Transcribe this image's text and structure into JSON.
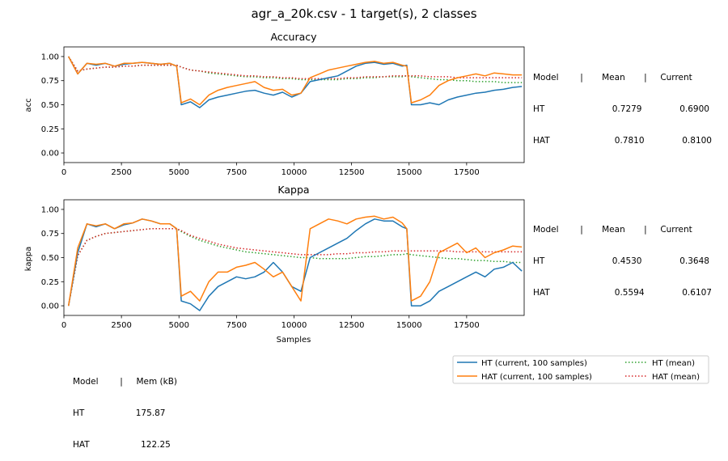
{
  "figure": {
    "title": "agr_a_20k.csv - 1 target(s), 2 classes"
  },
  "colors": {
    "ht_current": "#1f77b4",
    "hat_current": "#ff7f0e",
    "ht_mean": "#2ca02c",
    "hat_mean": "#d62728"
  },
  "chart_data": [
    {
      "type": "line",
      "title": "Accuracy",
      "xlabel": "",
      "ylabel": "acc",
      "xlim": [
        0,
        20000
      ],
      "ylim": [
        -0.1,
        1.1
      ],
      "xticks": [
        0,
        2500,
        5000,
        7500,
        10000,
        12500,
        15000,
        17500
      ],
      "yticks": [
        0.0,
        0.25,
        0.5,
        0.75,
        1.0
      ],
      "ytick_labels": [
        "0.00",
        "0.25",
        "0.50",
        "0.75",
        "1.00"
      ],
      "legend_position": "right (table)",
      "x": [
        200,
        600,
        1000,
        1400,
        1800,
        2200,
        2600,
        3000,
        3400,
        3800,
        4200,
        4600,
        4900,
        5100,
        5500,
        5900,
        6300,
        6700,
        7100,
        7500,
        7900,
        8300,
        8700,
        9100,
        9500,
        9900,
        10300,
        10700,
        11100,
        11500,
        11900,
        12300,
        12700,
        13100,
        13500,
        13900,
        14300,
        14700,
        14900,
        15100,
        15500,
        15900,
        16300,
        16700,
        17100,
        17500,
        17900,
        18300,
        18700,
        19100,
        19500,
        19900
      ],
      "series": [
        {
          "name": "HT",
          "style": "current",
          "values": [
            1.0,
            0.82,
            0.93,
            0.91,
            0.93,
            0.9,
            0.92,
            0.93,
            0.94,
            0.93,
            0.92,
            0.93,
            0.9,
            0.5,
            0.53,
            0.47,
            0.55,
            0.58,
            0.6,
            0.62,
            0.64,
            0.65,
            0.62,
            0.6,
            0.63,
            0.58,
            0.62,
            0.74,
            0.76,
            0.78,
            0.8,
            0.85,
            0.9,
            0.93,
            0.94,
            0.92,
            0.93,
            0.9,
            0.91,
            0.5,
            0.5,
            0.52,
            0.5,
            0.55,
            0.58,
            0.6,
            0.62,
            0.63,
            0.65,
            0.66,
            0.68,
            0.69
          ]
        },
        {
          "name": "HAT",
          "style": "current",
          "values": [
            1.0,
            0.82,
            0.93,
            0.92,
            0.93,
            0.9,
            0.93,
            0.93,
            0.94,
            0.93,
            0.92,
            0.93,
            0.9,
            0.52,
            0.56,
            0.5,
            0.6,
            0.65,
            0.68,
            0.7,
            0.72,
            0.74,
            0.68,
            0.65,
            0.66,
            0.6,
            0.62,
            0.78,
            0.82,
            0.86,
            0.88,
            0.9,
            0.92,
            0.94,
            0.95,
            0.93,
            0.94,
            0.91,
            0.9,
            0.52,
            0.55,
            0.6,
            0.7,
            0.75,
            0.78,
            0.8,
            0.82,
            0.8,
            0.83,
            0.82,
            0.81,
            0.81
          ]
        },
        {
          "name": "HT (mean)",
          "style": "mean",
          "values": [
            1.0,
            0.85,
            0.87,
            0.88,
            0.89,
            0.89,
            0.9,
            0.9,
            0.91,
            0.91,
            0.91,
            0.91,
            0.91,
            0.89,
            0.86,
            0.85,
            0.83,
            0.82,
            0.81,
            0.8,
            0.79,
            0.79,
            0.78,
            0.78,
            0.77,
            0.77,
            0.76,
            0.76,
            0.76,
            0.76,
            0.76,
            0.77,
            0.77,
            0.78,
            0.78,
            0.79,
            0.79,
            0.79,
            0.8,
            0.79,
            0.78,
            0.77,
            0.76,
            0.76,
            0.75,
            0.75,
            0.74,
            0.74,
            0.74,
            0.73,
            0.73,
            0.73
          ]
        },
        {
          "name": "HAT (mean)",
          "style": "mean",
          "values": [
            1.0,
            0.85,
            0.87,
            0.88,
            0.89,
            0.89,
            0.9,
            0.9,
            0.91,
            0.91,
            0.91,
            0.91,
            0.91,
            0.89,
            0.86,
            0.85,
            0.84,
            0.83,
            0.82,
            0.81,
            0.8,
            0.8,
            0.79,
            0.79,
            0.78,
            0.78,
            0.77,
            0.77,
            0.77,
            0.77,
            0.77,
            0.78,
            0.78,
            0.79,
            0.79,
            0.79,
            0.8,
            0.8,
            0.8,
            0.8,
            0.8,
            0.79,
            0.79,
            0.79,
            0.78,
            0.78,
            0.78,
            0.78,
            0.78,
            0.78,
            0.78,
            0.78
          ]
        }
      ],
      "stats": {
        "header": "Model        |       Mean       |     Current",
        "rows": [
          "HT                         0.7279              0.6900",
          "HAT                        0.7810              0.8100"
        ]
      }
    },
    {
      "type": "line",
      "title": "Kappa",
      "xlabel": "Samples",
      "ylabel": "kappa",
      "xlim": [
        0,
        20000
      ],
      "ylim": [
        -0.1,
        1.1
      ],
      "xticks": [
        0,
        2500,
        5000,
        7500,
        10000,
        12500,
        15000,
        17500
      ],
      "yticks": [
        0.0,
        0.25,
        0.5,
        0.75,
        1.0
      ],
      "ytick_labels": [
        "0.00",
        "0.25",
        "0.50",
        "0.75",
        "1.00"
      ],
      "legend_position": "right (table)",
      "x": [
        200,
        600,
        1000,
        1400,
        1800,
        2200,
        2600,
        3000,
        3400,
        3800,
        4200,
        4600,
        4900,
        5100,
        5500,
        5900,
        6300,
        6700,
        7100,
        7500,
        7900,
        8300,
        8700,
        9100,
        9500,
        9900,
        10300,
        10700,
        11100,
        11500,
        11900,
        12300,
        12700,
        13100,
        13500,
        13900,
        14300,
        14700,
        14900,
        15100,
        15500,
        15900,
        16300,
        16700,
        17100,
        17500,
        17900,
        18300,
        18700,
        19100,
        19500,
        19900
      ],
      "series": [
        {
          "name": "HT",
          "style": "current",
          "values": [
            0.0,
            0.55,
            0.85,
            0.82,
            0.85,
            0.8,
            0.84,
            0.86,
            0.9,
            0.88,
            0.85,
            0.85,
            0.8,
            0.05,
            0.02,
            -0.05,
            0.1,
            0.2,
            0.25,
            0.3,
            0.28,
            0.3,
            0.35,
            0.45,
            0.35,
            0.2,
            0.15,
            0.5,
            0.55,
            0.6,
            0.65,
            0.7,
            0.78,
            0.85,
            0.9,
            0.88,
            0.88,
            0.82,
            0.8,
            0.0,
            0.0,
            0.05,
            0.15,
            0.2,
            0.25,
            0.3,
            0.35,
            0.3,
            0.38,
            0.4,
            0.45,
            0.36
          ]
        },
        {
          "name": "HAT",
          "style": "current",
          "values": [
            0.0,
            0.6,
            0.85,
            0.83,
            0.85,
            0.8,
            0.85,
            0.86,
            0.9,
            0.88,
            0.85,
            0.85,
            0.8,
            0.1,
            0.15,
            0.05,
            0.25,
            0.35,
            0.35,
            0.4,
            0.42,
            0.45,
            0.38,
            0.3,
            0.35,
            0.2,
            0.05,
            0.8,
            0.85,
            0.9,
            0.88,
            0.85,
            0.9,
            0.92,
            0.93,
            0.9,
            0.92,
            0.86,
            0.8,
            0.05,
            0.1,
            0.25,
            0.55,
            0.6,
            0.65,
            0.55,
            0.6,
            0.5,
            0.55,
            0.58,
            0.62,
            0.61
          ]
        },
        {
          "name": "HT (mean)",
          "style": "mean",
          "values": [
            0.0,
            0.52,
            0.68,
            0.72,
            0.75,
            0.76,
            0.77,
            0.78,
            0.79,
            0.8,
            0.8,
            0.8,
            0.8,
            0.77,
            0.72,
            0.68,
            0.65,
            0.62,
            0.6,
            0.58,
            0.56,
            0.55,
            0.54,
            0.53,
            0.52,
            0.51,
            0.5,
            0.5,
            0.49,
            0.49,
            0.49,
            0.49,
            0.5,
            0.51,
            0.51,
            0.52,
            0.53,
            0.53,
            0.54,
            0.53,
            0.52,
            0.51,
            0.5,
            0.49,
            0.49,
            0.48,
            0.47,
            0.47,
            0.46,
            0.46,
            0.45,
            0.45
          ]
        },
        {
          "name": "HAT (mean)",
          "style": "mean",
          "values": [
            0.0,
            0.52,
            0.68,
            0.72,
            0.75,
            0.76,
            0.77,
            0.78,
            0.79,
            0.8,
            0.8,
            0.8,
            0.8,
            0.78,
            0.73,
            0.7,
            0.67,
            0.64,
            0.62,
            0.6,
            0.59,
            0.58,
            0.57,
            0.56,
            0.55,
            0.54,
            0.53,
            0.53,
            0.53,
            0.53,
            0.54,
            0.54,
            0.55,
            0.55,
            0.56,
            0.56,
            0.57,
            0.57,
            0.57,
            0.57,
            0.57,
            0.57,
            0.57,
            0.57,
            0.56,
            0.56,
            0.56,
            0.56,
            0.56,
            0.56,
            0.56,
            0.56
          ]
        }
      ],
      "stats": {
        "header": "Model        |       Mean       |     Current",
        "rows": [
          "HT                         0.4530              0.3648",
          "HAT                        0.5594              0.6107"
        ]
      }
    }
  ],
  "memory": {
    "header": "Model        |     Mem (kB)",
    "rows": [
      "HT                   175.87",
      "HAT                   122.25"
    ]
  },
  "legend": {
    "entries": [
      {
        "label": "HT  (current, 100 samples)",
        "style": "solid",
        "color_key": "ht_current"
      },
      {
        "label": "HAT  (current, 100 samples)",
        "style": "solid",
        "color_key": "hat_current"
      },
      {
        "label": "HT (mean)",
        "style": "dotted",
        "color_key": "ht_mean"
      },
      {
        "label": "HAT (mean)",
        "style": "dotted",
        "color_key": "hat_mean"
      }
    ]
  }
}
